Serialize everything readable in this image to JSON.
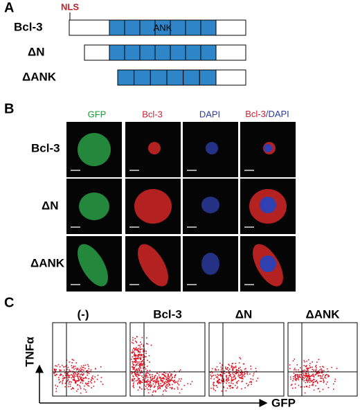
{
  "panel_a": {
    "label": "A",
    "nls": "NLS",
    "domain": "ANK",
    "constructs": [
      "Bcl-3",
      "ΔN",
      "ΔANK"
    ]
  },
  "panel_b": {
    "label": "B",
    "columns": [
      "GFP",
      "Bcl-3",
      "DAPI"
    ],
    "merged": [
      "Bcl-3",
      "/DAPI"
    ],
    "rows": [
      "Bcl-3",
      "ΔN",
      "ΔANK"
    ]
  },
  "panel_c": {
    "label": "C",
    "plots": [
      "(-)",
      "Bcl-3",
      "ΔN",
      "ΔANK"
    ],
    "y_axis": "TNFα",
    "x_axis": "GFP"
  }
}
